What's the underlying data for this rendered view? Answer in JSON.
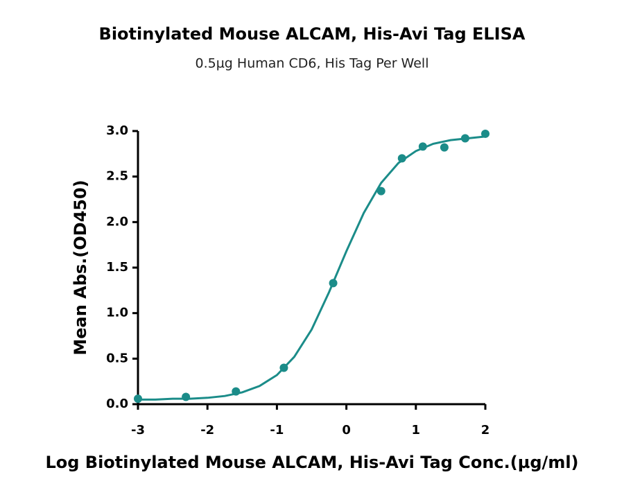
{
  "chart_data": {
    "type": "scatter",
    "title": "Biotinylated Mouse ALCAM, His-Avi Tag ELISA",
    "subtitle": "0.5µg Human CD6, His Tag Per Well",
    "x_label": "Log Biotinylated Mouse ALCAM, His-Avi Tag Conc.(µg/ml)",
    "y_label": "Mean Abs.(OD450)",
    "color": "#1b8c89",
    "x": [
      -3,
      -2.31,
      -1.59,
      -0.9,
      -0.19,
      0.5,
      0.8,
      1.1,
      1.41,
      1.71,
      2.0
    ],
    "values": [
      0.06,
      0.08,
      0.14,
      0.4,
      1.33,
      2.34,
      2.7,
      2.83,
      2.82,
      2.92,
      2.97
    ],
    "fit": {
      "x": [
        -3,
        -2.75,
        -2.5,
        -2.25,
        -2,
        -1.75,
        -1.5,
        -1.25,
        -1,
        -0.75,
        -0.5,
        -0.25,
        0,
        0.25,
        0.5,
        0.75,
        1,
        1.25,
        1.5,
        1.75,
        2
      ],
      "values": [
        0.05,
        0.05,
        0.06,
        0.06,
        0.07,
        0.09,
        0.13,
        0.2,
        0.32,
        0.52,
        0.82,
        1.23,
        1.68,
        2.1,
        2.43,
        2.65,
        2.78,
        2.86,
        2.9,
        2.92,
        2.94
      ]
    },
    "xlim": [
      -3,
      2
    ],
    "xticks": [
      -3,
      -2,
      -1,
      0,
      1,
      2
    ],
    "ylim": [
      0,
      3
    ],
    "yticks": [
      {
        "value": 0,
        "label": "0.0"
      },
      0.5,
      {
        "value": 1,
        "label": "1.0"
      },
      1.5,
      {
        "value": 2,
        "label": "2.0"
      },
      2.5,
      {
        "value": 3,
        "label": "3.0"
      }
    ]
  }
}
